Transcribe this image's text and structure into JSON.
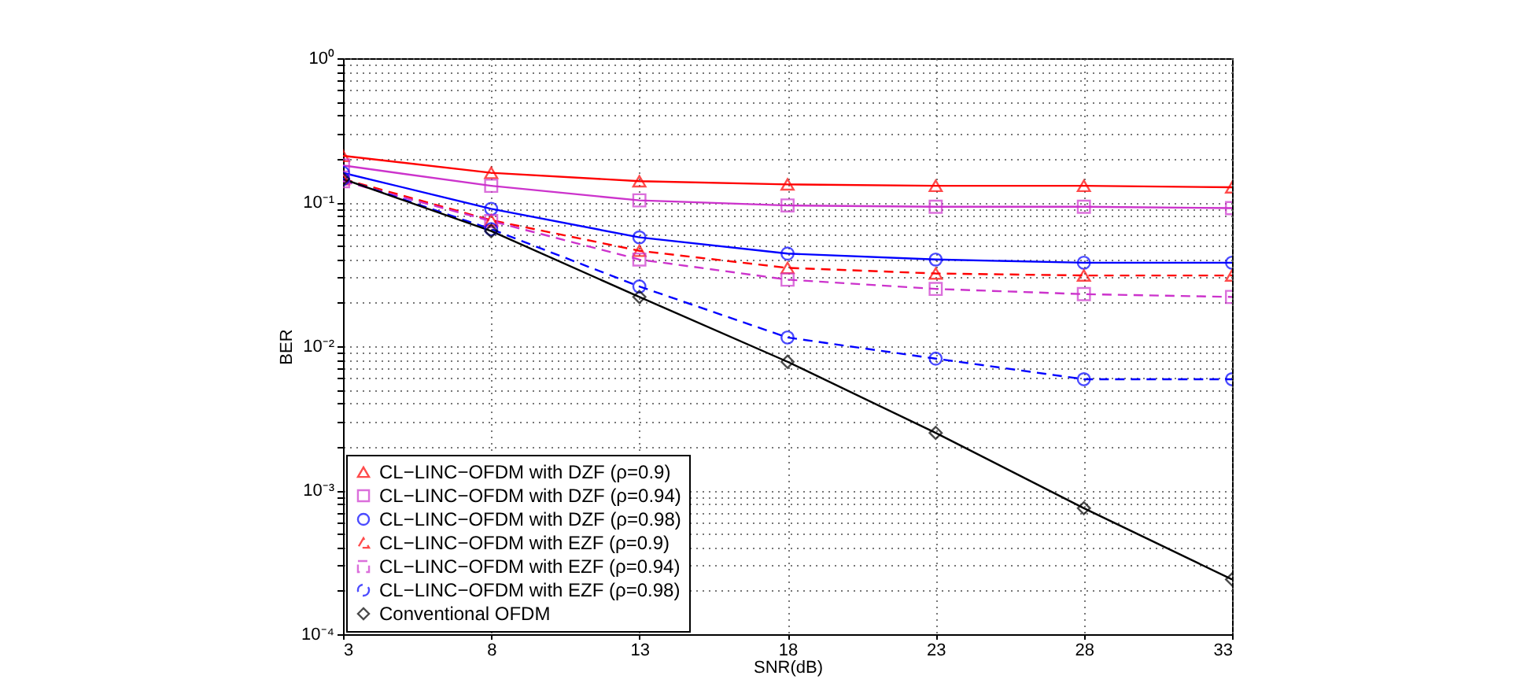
{
  "chart_data": {
    "type": "line",
    "xlabel": "SNR(dB)",
    "ylabel": "BER",
    "x": [
      3,
      8,
      13,
      18,
      23,
      28,
      33
    ],
    "series": [
      {
        "name": "CL−LINC−OFDM with DZF (ρ=0.9)",
        "color": "#ff0000",
        "marker": "triangle",
        "line_style": "solid",
        "values": [
          0.21,
          0.16,
          0.14,
          0.133,
          0.13,
          0.13,
          0.127
        ]
      },
      {
        "name": "CL−LINC−OFDM with DZF (ρ=0.94)",
        "color": "#cc33cc",
        "marker": "square",
        "line_style": "solid",
        "values": [
          0.18,
          0.13,
          0.103,
          0.095,
          0.093,
          0.093,
          0.091
        ]
      },
      {
        "name": "CL−LINC−OFDM with DZF (ρ=0.98)",
        "color": "#0000ff",
        "marker": "circle",
        "line_style": "solid",
        "values": [
          0.16,
          0.09,
          0.057,
          0.044,
          0.04,
          0.038,
          0.038
        ]
      },
      {
        "name": "CL−LINC−OFDM with EZF (ρ=0.9)",
        "color": "#ff0000",
        "marker": "triangle",
        "line_style": "dashed",
        "values": [
          0.145,
          0.075,
          0.046,
          0.035,
          0.032,
          0.031,
          0.031
        ]
      },
      {
        "name": "CL−LINC−OFDM with EZF (ρ=0.94)",
        "color": "#cc33cc",
        "marker": "square",
        "line_style": "dashed",
        "values": [
          0.14,
          0.074,
          0.04,
          0.029,
          0.025,
          0.023,
          0.022
        ]
      },
      {
        "name": "CL−LINC−OFDM with EZF (ρ=0.98)",
        "color": "#0000ff",
        "marker": "circle",
        "line_style": "dashed",
        "values": [
          0.145,
          0.065,
          0.026,
          0.0115,
          0.0082,
          0.0059,
          0.0059
        ]
      },
      {
        "name": "Conventional OFDM",
        "color": "#000000",
        "marker": "diamond",
        "line_style": "solid",
        "values": [
          0.145,
          0.063,
          0.022,
          0.0078,
          0.0025,
          0.00075,
          0.00024
        ]
      }
    ],
    "log": "y",
    "xlim": [
      3,
      33
    ],
    "xticks": [
      3,
      8,
      13,
      18,
      23,
      28,
      33
    ],
    "ylim": [
      0.0001,
      1
    ],
    "yticks": [
      {
        "value": 0.0001,
        "label": "10⁻⁴"
      },
      {
        "value": 0.0002,
        "label": null
      },
      {
        "value": 0.0003,
        "label": null
      },
      {
        "value": 0.0004,
        "label": null
      },
      {
        "value": 0.0005,
        "label": null
      },
      {
        "value": 0.0006,
        "label": null
      },
      {
        "value": 0.0007,
        "label": null
      },
      {
        "value": 0.0008,
        "label": null
      },
      {
        "value": 0.0009,
        "label": null
      },
      {
        "value": 0.001,
        "label": "10⁻³"
      },
      {
        "value": 0.002,
        "label": null
      },
      {
        "value": 0.003,
        "label": null
      },
      {
        "value": 0.004,
        "label": null
      },
      {
        "value": 0.005,
        "label": null
      },
      {
        "value": 0.006,
        "label": null
      },
      {
        "value": 0.007,
        "label": null
      },
      {
        "value": 0.008,
        "label": null
      },
      {
        "value": 0.009,
        "label": null
      },
      {
        "value": 0.01,
        "label": "10⁻²"
      },
      {
        "value": 0.02,
        "label": null
      },
      {
        "value": 0.03,
        "label": null
      },
      {
        "value": 0.04,
        "label": null
      },
      {
        "value": 0.05,
        "label": null
      },
      {
        "value": 0.06,
        "label": null
      },
      {
        "value": 0.07,
        "label": null
      },
      {
        "value": 0.08,
        "label": null
      },
      {
        "value": 0.09,
        "label": null
      },
      {
        "value": 0.1,
        "label": "10⁻¹"
      },
      {
        "value": 0.2,
        "label": null
      },
      {
        "value": 0.3,
        "label": null
      },
      {
        "value": 0.4,
        "label": null
      },
      {
        "value": 0.5,
        "label": null
      },
      {
        "value": 0.6,
        "label": null
      },
      {
        "value": 0.7,
        "label": null
      },
      {
        "value": 0.8,
        "label": null
      },
      {
        "value": 0.9,
        "label": null
      },
      {
        "value": 1,
        "label": "10⁰"
      }
    ],
    "grid": true,
    "legend": "bottom left"
  }
}
